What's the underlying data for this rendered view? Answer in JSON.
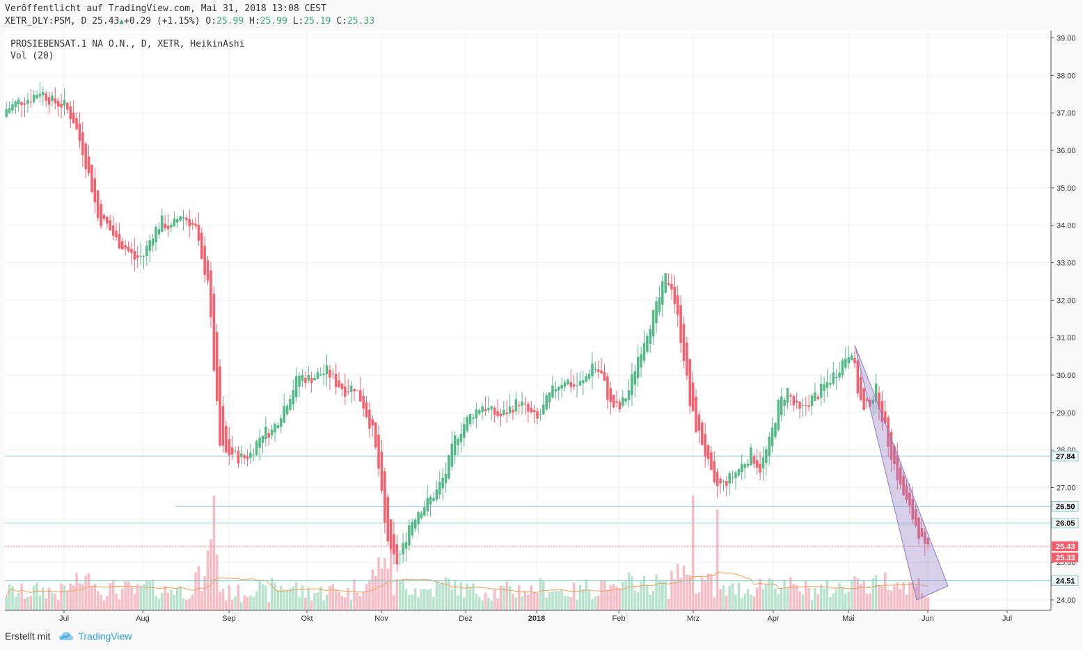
{
  "header": {
    "published": "Veröffentlicht auf TradingView.com, Mai 31, 2018 13:08 CEST",
    "symbol": "XETR_DLY:PSM, D",
    "last": "25.43",
    "change": "+0.29 (+1.15%)",
    "o_label": "O:",
    "o_value": "25.99",
    "h_label": "H:",
    "h_value": "25.99",
    "l_label": "L:",
    "l_value": "25.19",
    "c_label": "C:",
    "c_value": "25.33"
  },
  "legend": {
    "title": "PROSIEBENSAT.1 NA O.N., D, XETR, HeikinAshi",
    "volume": "Vol (20)"
  },
  "footer": {
    "created_with": "Erstellt mit",
    "brand": "TradingView"
  },
  "colors": {
    "up": "#53b987",
    "down": "#f85e6b",
    "line": "#8fc7c9",
    "price_line": "#f85e6b",
    "vol_up": "#b7e3cc",
    "vol_down": "#f9bcc4",
    "vol_ma": "#f2a05d",
    "channel": "#8e79c4"
  },
  "chart_data": {
    "type": "candlestick",
    "y_range": [
      23.7,
      39.2
    ],
    "y_ticks": [
      "39.00",
      "38.00",
      "37.00",
      "36.00",
      "35.00",
      "34.00",
      "33.00",
      "32.00",
      "31.00",
      "30.00",
      "29.00",
      "28.00",
      "27.00",
      "26.00",
      "25.00",
      "24.00"
    ],
    "x_ticks": [
      "Jul",
      "Aug",
      "Sep",
      "Okt",
      "Nov",
      "Dez",
      "2018",
      "Feb",
      "Mrz",
      "Apr",
      "Mai",
      "Jun",
      "Jul"
    ],
    "horizontal_levels": [
      {
        "value": 27.84,
        "label": "27.84"
      },
      {
        "value": 26.5,
        "label": "26.50"
      },
      {
        "value": 26.05,
        "label": "26.05"
      },
      {
        "value": 24.51,
        "label": "24.51"
      }
    ],
    "last_price": {
      "value": 25.43,
      "label": "25.43"
    },
    "close_price": {
      "value": 25.33,
      "label": "25.33"
    },
    "series": [
      {
        "name": "price",
        "close_path": [
          [
            0,
            37.1
          ],
          [
            4,
            37.3
          ],
          [
            8,
            37.4
          ],
          [
            11,
            37.6
          ],
          [
            15,
            37.3
          ],
          [
            19,
            37.2
          ],
          [
            22,
            36.8
          ],
          [
            25,
            36.0
          ],
          [
            28,
            35.0
          ],
          [
            30,
            34.2
          ],
          [
            33,
            34.0
          ],
          [
            36,
            33.6
          ],
          [
            39,
            33.4
          ],
          [
            42,
            33.1
          ],
          [
            45,
            33.2
          ],
          [
            48,
            33.8
          ],
          [
            51,
            34.1
          ],
          [
            54,
            33.9
          ],
          [
            57,
            34.3
          ],
          [
            60,
            34.1
          ],
          [
            62,
            33.9
          ],
          [
            64,
            33.0
          ],
          [
            66,
            32.6
          ],
          [
            68,
            30.2
          ],
          [
            70,
            28.1
          ],
          [
            72,
            27.9
          ],
          [
            74,
            27.9
          ],
          [
            76,
            27.8
          ],
          [
            78,
            27.8
          ],
          [
            80,
            27.9
          ],
          [
            82,
            28.2
          ],
          [
            84,
            28.5
          ],
          [
            87,
            28.5
          ],
          [
            90,
            29.0
          ],
          [
            93,
            29.5
          ],
          [
            96,
            30.0
          ],
          [
            99,
            29.9
          ],
          [
            102,
            30.0
          ],
          [
            105,
            30.1
          ],
          [
            108,
            29.8
          ],
          [
            111,
            29.6
          ],
          [
            114,
            29.7
          ],
          [
            117,
            29.2
          ],
          [
            120,
            28.5
          ],
          [
            122,
            27.5
          ],
          [
            124,
            26.0
          ],
          [
            126,
            25.2
          ],
          [
            128,
            25.0
          ],
          [
            130,
            25.4
          ],
          [
            132,
            26.0
          ],
          [
            135,
            26.4
          ],
          [
            138,
            26.6
          ],
          [
            141,
            26.9
          ],
          [
            144,
            27.4
          ],
          [
            147,
            28.3
          ],
          [
            150,
            28.7
          ],
          [
            153,
            29.0
          ],
          [
            156,
            29.2
          ],
          [
            159,
            29.0
          ],
          [
            162,
            28.9
          ],
          [
            165,
            29.1
          ],
          [
            168,
            29.3
          ],
          [
            171,
            29.0
          ],
          [
            174,
            28.8
          ],
          [
            177,
            29.3
          ],
          [
            180,
            29.7
          ],
          [
            183,
            29.9
          ],
          [
            186,
            29.7
          ],
          [
            189,
            29.8
          ],
          [
            192,
            30.3
          ],
          [
            195,
            30.0
          ],
          [
            198,
            29.2
          ],
          [
            201,
            29.1
          ],
          [
            204,
            29.6
          ],
          [
            207,
            30.5
          ],
          [
            210,
            31.2
          ],
          [
            213,
            31.8
          ],
          [
            216,
            32.6
          ],
          [
            218,
            32.4
          ],
          [
            220,
            31.5
          ],
          [
            222,
            30.5
          ],
          [
            224,
            29.2
          ],
          [
            226,
            28.6
          ],
          [
            228,
            28.2
          ],
          [
            230,
            27.6
          ],
          [
            232,
            27.0
          ],
          [
            235,
            27.1
          ],
          [
            238,
            27.3
          ],
          [
            241,
            27.6
          ],
          [
            244,
            27.9
          ],
          [
            247,
            27.5
          ],
          [
            250,
            28.2
          ],
          [
            253,
            29.2
          ],
          [
            256,
            29.6
          ],
          [
            258,
            29.2
          ],
          [
            260,
            29.0
          ],
          [
            263,
            29.3
          ],
          [
            266,
            29.5
          ],
          [
            269,
            29.8
          ],
          [
            272,
            30.1
          ],
          [
            275,
            30.5
          ],
          [
            277,
            30.7
          ],
          [
            279,
            29.6
          ],
          [
            281,
            29.0
          ],
          [
            283,
            29.3
          ],
          [
            285,
            29.6
          ],
          [
            287,
            28.9
          ],
          [
            289,
            28.2
          ],
          [
            291,
            27.6
          ],
          [
            293,
            27.0
          ],
          [
            295,
            26.6
          ],
          [
            297,
            26.2
          ],
          [
            299,
            25.8
          ],
          [
            301,
            25.33
          ]
        ]
      },
      {
        "name": "volume",
        "values_note": "relative volume per bar"
      }
    ],
    "channel": {
      "from": [
        278,
        30.8
      ],
      "to": [
        304,
        24.0
      ],
      "width": 0.9
    }
  }
}
